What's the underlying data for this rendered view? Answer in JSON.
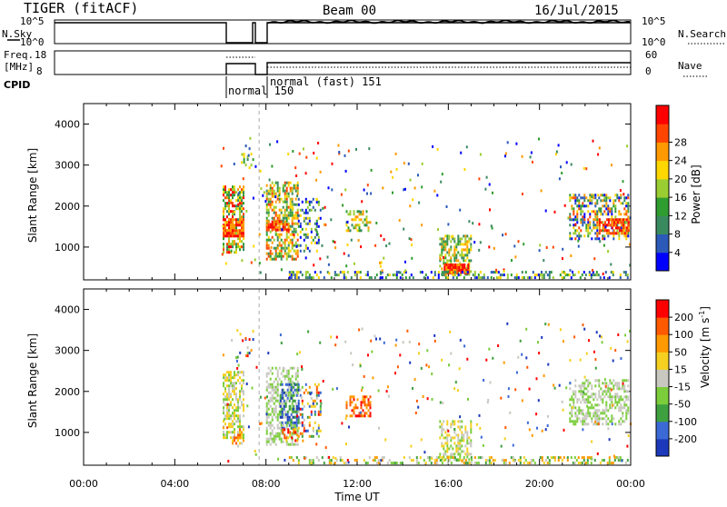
{
  "header": {
    "station": "TIGER (fitACF)",
    "beam": "Beam 00",
    "date": "16/Jul/2015"
  },
  "top_panels": {
    "nsky_label": "N.Sky",
    "nsky_ticks": [
      "10^5",
      "10^0"
    ],
    "nsearch_label": "N.Search",
    "nsearch_ticks": [
      "10^5",
      "10^0"
    ],
    "freq_label_1": "Freq.",
    "freq_label_2": "[MHz]",
    "freq_ticks": [
      "18",
      "8"
    ],
    "nave_label": "Nave",
    "nave_ticks": [
      "60",
      "0"
    ],
    "cpid_label": "CPID",
    "cpid_entries": [
      {
        "text": "normal 150"
      },
      {
        "text": "normal (fast) 151"
      }
    ]
  },
  "chart_data": [
    {
      "type": "heatmap",
      "title": "",
      "ylabel": "Slant Range [km]",
      "xlabel": "Time UT",
      "yticks": [
        "1000",
        "2000",
        "3000",
        "4000"
      ],
      "ylim": [
        200,
        4500
      ],
      "colorbar_label": "Power [dB]",
      "colorbar_ticks": [
        "4",
        "8",
        "12",
        "16",
        "20",
        "24",
        "28"
      ],
      "colorbar_colors": [
        "#0000ff",
        "#2c5ab8",
        "#3a8a60",
        "#2f9d2f",
        "#9acd32",
        "#ffd700",
        "#ff9900",
        "#ff4500",
        "#ff0000"
      ]
    },
    {
      "type": "heatmap",
      "title": "",
      "ylabel": "Slant Range [km]",
      "xlabel": "Time UT",
      "yticks": [
        "1000",
        "2000",
        "3000",
        "4000"
      ],
      "ylim": [
        200,
        4500
      ],
      "colorbar_label": "Velocity [m s^-1]",
      "colorbar_ticks": [
        "200",
        "100",
        "50",
        "15",
        "-15",
        "-50",
        "-100",
        "-200"
      ],
      "colorbar_colors": [
        "#1c39bb",
        "#3b6ad6",
        "#3fa03f",
        "#7ccd3c",
        "#c8c8c0",
        "#f5d020",
        "#ff9a00",
        "#ff5a00",
        "#ff0000"
      ]
    }
  ],
  "xaxis": {
    "ticks": [
      "00:00",
      "04:00",
      "08:00",
      "12:00",
      "16:00",
      "20:00",
      "00:00"
    ],
    "label": "Time UT"
  }
}
